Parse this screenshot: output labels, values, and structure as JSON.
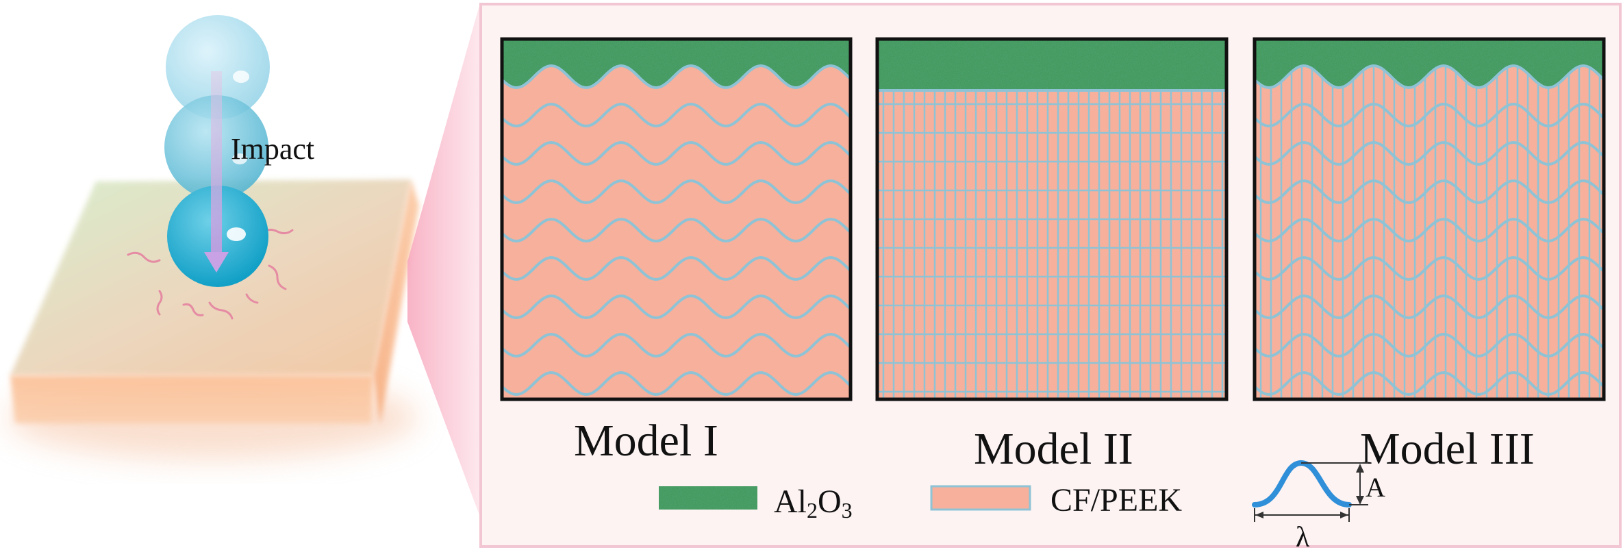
{
  "impact_label": "Impact",
  "models": [
    {
      "label": "Model I",
      "interface": "wavy",
      "fibers": false
    },
    {
      "label": "Model II",
      "interface": "flat",
      "fibers": true
    },
    {
      "label": "Model III",
      "interface": "wavy",
      "fibers": true
    }
  ],
  "legend": {
    "al2o3": {
      "base": "Al",
      "sub1": "2",
      "mid": "O",
      "sub2": "3"
    },
    "cfpeek": "CF/PEEK"
  },
  "wave_symbols": {
    "amplitude": "A",
    "wavelength": "λ"
  },
  "colors": {
    "ceramic": "#3f9a5c",
    "composite": "#f6b09c",
    "fiber_line": "#8ec3d6",
    "panel_bg": "#fdf3f3",
    "wave_curve": "#2f8fd8"
  }
}
